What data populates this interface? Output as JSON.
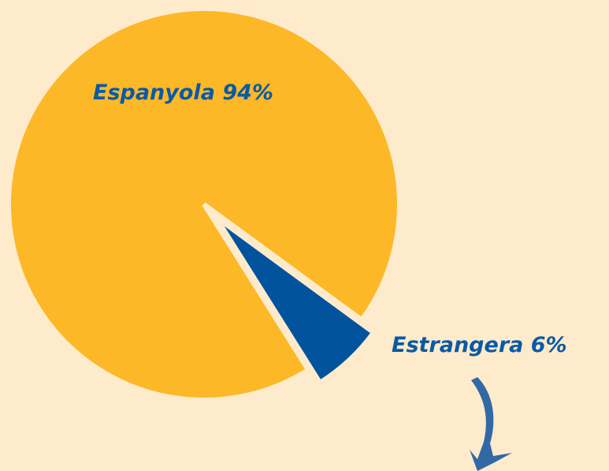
{
  "chart_data": {
    "type": "pie",
    "categories": [
      "Espanyola",
      "Estrangera"
    ],
    "values": [
      94,
      6
    ],
    "value_labels": [
      "94%",
      "6%"
    ],
    "colors": [
      "#fdb827",
      "#00539c"
    ]
  }
}
